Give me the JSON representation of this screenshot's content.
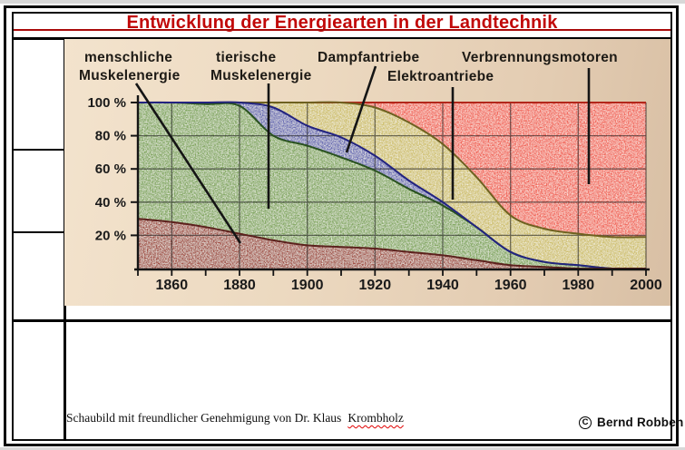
{
  "header": {
    "title": "Entwicklung der Energiearten in der Landtechnik"
  },
  "footer": {
    "caption_text": "Schaubild mit freundlicher Genehmigung von Dr. Klaus",
    "caption_marked_word": "Krombholz",
    "copyright_symbol": "C",
    "copyright_name": "Bernd Robben"
  },
  "chart_data": {
    "type": "area",
    "stacked": true,
    "title": "Entwicklung der Energiearten in der Landtechnik",
    "xlabel": "",
    "ylabel": "",
    "unit": "%",
    "ylim": [
      0,
      100
    ],
    "xlim": [
      1850,
      2000
    ],
    "grid": true,
    "x_years": [
      1850,
      1860,
      1870,
      1880,
      1890,
      1900,
      1910,
      1920,
      1930,
      1940,
      1950,
      1960,
      1970,
      1980,
      1990,
      2000
    ],
    "x_tick_labels": [
      "1860",
      "1880",
      "1900",
      "1920",
      "1940",
      "1960",
      "1980",
      "2000"
    ],
    "x_tick_years": [
      1860,
      1880,
      1900,
      1920,
      1940,
      1960,
      1980,
      2000
    ],
    "y_tick_labels": [
      "100 %",
      "80 %",
      "60 %",
      "40 %",
      "20 %"
    ],
    "y_tick_values": [
      100,
      80,
      60,
      40,
      20
    ],
    "series": [
      {
        "name": "menschliche Muskelenergie",
        "label_lines": [
          "menschliche",
          "Muskelenergie"
        ],
        "color": "#a3524a",
        "edge": "#5c211d",
        "values": [
          30,
          28,
          25,
          21,
          17,
          14,
          13,
          12,
          10,
          8,
          5,
          2,
          1,
          0,
          0,
          0
        ]
      },
      {
        "name": "tierische Muskelenergie",
        "label_lines": [
          "tierische",
          "Muskelenergie"
        ],
        "color": "#83a862",
        "edge": "#29511f",
        "values": [
          70,
          72,
          74,
          77,
          63,
          60,
          54,
          47,
          38,
          30,
          20,
          8,
          3,
          2,
          0,
          0
        ]
      },
      {
        "name": "Dampfantriebe",
        "label_lines": [
          "Dampfantriebe"
        ],
        "color": "#6b6db4",
        "edge": "#232480",
        "values": [
          0,
          0,
          1,
          2,
          17,
          12,
          12,
          9,
          5,
          2,
          0,
          0,
          0,
          0,
          0,
          0
        ]
      },
      {
        "name": "Elektroantriebe",
        "label_lines": [
          "Elektroantriebe"
        ],
        "color": "#cfc06e",
        "edge": "#6e6120",
        "values": [
          0,
          0,
          0,
          0,
          3,
          14,
          21,
          29,
          35,
          35,
          30,
          22,
          20,
          19,
          19,
          19
        ]
      },
      {
        "name": "Verbrennungsmotoren",
        "label_lines": [
          "Verbrennungsmotoren"
        ],
        "color": "#f1685c",
        "edge": "#b2271b",
        "values": [
          0,
          0,
          0,
          0,
          0,
          0,
          0,
          3,
          12,
          25,
          45,
          68,
          76,
          79,
          81,
          81
        ]
      }
    ]
  }
}
